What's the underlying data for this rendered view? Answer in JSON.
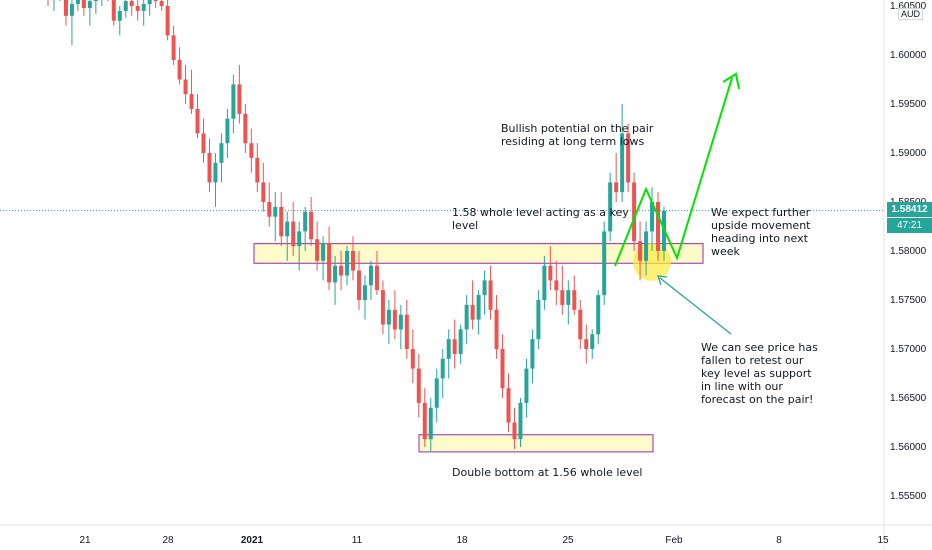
{
  "chart_data": {
    "type": "candlestick",
    "instrument_currency": "AUD",
    "y_ticks": [
      "1.60500",
      "1.60000",
      "1.59500",
      "1.59000",
      "1.58500",
      "1.58000",
      "1.57500",
      "1.57000",
      "1.56500",
      "1.56000",
      "1.55500"
    ],
    "x_ticks": [
      {
        "label": "21",
        "bold": false
      },
      {
        "label": "28",
        "bold": false
      },
      {
        "label": "2021",
        "bold": true
      },
      {
        "label": "11",
        "bold": false
      },
      {
        "label": "18",
        "bold": false
      },
      {
        "label": "25",
        "bold": false
      },
      {
        "label": "Feb",
        "bold": false
      },
      {
        "label": "8",
        "bold": false
      },
      {
        "label": "15",
        "bold": false
      }
    ],
    "ylim": [
      1.552,
      1.6065
    ],
    "current_price": "1.58412",
    "countdown": "47:21",
    "candles": [
      [
        1.607,
        1.608,
        1.605,
        1.606
      ],
      [
        1.606,
        1.6075,
        1.6045,
        1.6062
      ],
      [
        1.6062,
        1.6078,
        1.6055,
        1.6068
      ],
      [
        1.6068,
        1.6076,
        1.603,
        1.604
      ],
      [
        1.604,
        1.6058,
        1.601,
        1.6052
      ],
      [
        1.6052,
        1.607,
        1.6045,
        1.6065
      ],
      [
        1.6065,
        1.6072,
        1.604,
        1.6048
      ],
      [
        1.6048,
        1.606,
        1.603,
        1.6055
      ],
      [
        1.6055,
        1.6068,
        1.6042,
        1.606
      ],
      [
        1.606,
        1.6075,
        1.605,
        1.607
      ],
      [
        1.607,
        1.608,
        1.6055,
        1.6058
      ],
      [
        1.6058,
        1.6062,
        1.603,
        1.6035
      ],
      [
        1.6035,
        1.605,
        1.602,
        1.6045
      ],
      [
        1.6045,
        1.606,
        1.6038,
        1.6055
      ],
      [
        1.6055,
        1.6065,
        1.604,
        1.605
      ],
      [
        1.605,
        1.6062,
        1.6035,
        1.6045
      ],
      [
        1.6045,
        1.6058,
        1.603,
        1.6052
      ],
      [
        1.6052,
        1.6066,
        1.604,
        1.606
      ],
      [
        1.606,
        1.607,
        1.6048,
        1.6055
      ],
      [
        1.6055,
        1.6068,
        1.6045,
        1.605
      ],
      [
        1.605,
        1.6058,
        1.6015,
        1.602
      ],
      [
        1.602,
        1.603,
        1.599,
        1.5995
      ],
      [
        1.5995,
        1.6008,
        1.597,
        1.5975
      ],
      [
        1.5975,
        1.599,
        1.595,
        1.596
      ],
      [
        1.596,
        1.5985,
        1.594,
        1.5945
      ],
      [
        1.5945,
        1.596,
        1.5915,
        1.592
      ],
      [
        1.592,
        1.5935,
        1.589,
        1.59
      ],
      [
        1.59,
        1.5915,
        1.586,
        1.587
      ],
      [
        1.587,
        1.59,
        1.5845,
        1.589
      ],
      [
        1.589,
        1.592,
        1.587,
        1.591
      ],
      [
        1.591,
        1.5945,
        1.5895,
        1.5935
      ],
      [
        1.5935,
        1.598,
        1.592,
        1.597
      ],
      [
        1.597,
        1.599,
        1.593,
        1.594
      ],
      [
        1.594,
        1.595,
        1.59,
        1.591
      ],
      [
        1.591,
        1.5925,
        1.588,
        1.5895
      ],
      [
        1.5895,
        1.591,
        1.586,
        1.587
      ],
      [
        1.587,
        1.589,
        1.584,
        1.585
      ],
      [
        1.585,
        1.587,
        1.5825,
        1.5835
      ],
      [
        1.5835,
        1.586,
        1.581,
        1.5845
      ],
      [
        1.5845,
        1.586,
        1.5805,
        1.5815
      ],
      [
        1.5815,
        1.584,
        1.579,
        1.583
      ],
      [
        1.583,
        1.585,
        1.5795,
        1.5805
      ],
      [
        1.5805,
        1.583,
        1.578,
        1.582
      ],
      [
        1.582,
        1.5845,
        1.58,
        1.584
      ],
      [
        1.584,
        1.5855,
        1.5805,
        1.5812
      ],
      [
        1.5812,
        1.583,
        1.578,
        1.579
      ],
      [
        1.579,
        1.5815,
        1.577,
        1.5808
      ],
      [
        1.5808,
        1.5825,
        1.576,
        1.5768
      ],
      [
        1.5768,
        1.5795,
        1.5745,
        1.5785
      ],
      [
        1.5785,
        1.58,
        1.576,
        1.5775
      ],
      [
        1.5775,
        1.5805,
        1.5765,
        1.58
      ],
      [
        1.58,
        1.5815,
        1.577,
        1.578
      ],
      [
        1.578,
        1.58,
        1.574,
        1.575
      ],
      [
        1.575,
        1.5775,
        1.573,
        1.5765
      ],
      [
        1.5765,
        1.579,
        1.575,
        1.5785
      ],
      [
        1.5785,
        1.58,
        1.5755,
        1.576
      ],
      [
        1.576,
        1.577,
        1.5715,
        1.5725
      ],
      [
        1.5725,
        1.575,
        1.5705,
        1.574
      ],
      [
        1.574,
        1.576,
        1.571,
        1.572
      ],
      [
        1.572,
        1.5745,
        1.57,
        1.5735
      ],
      [
        1.5735,
        1.575,
        1.569,
        1.57
      ],
      [
        1.57,
        1.572,
        1.5665,
        1.568
      ],
      [
        1.568,
        1.5695,
        1.563,
        1.5645
      ],
      [
        1.5645,
        1.566,
        1.56,
        1.5608
      ],
      [
        1.5608,
        1.565,
        1.5595,
        1.564
      ],
      [
        1.564,
        1.568,
        1.5625,
        1.567
      ],
      [
        1.567,
        1.57,
        1.565,
        1.569
      ],
      [
        1.569,
        1.572,
        1.567,
        1.571
      ],
      [
        1.571,
        1.573,
        1.568,
        1.5695
      ],
      [
        1.5695,
        1.5725,
        1.5685,
        1.572
      ],
      [
        1.572,
        1.5755,
        1.5705,
        1.5745
      ],
      [
        1.5745,
        1.577,
        1.572,
        1.573
      ],
      [
        1.573,
        1.576,
        1.5715,
        1.5755
      ],
      [
        1.5755,
        1.578,
        1.5735,
        1.577
      ],
      [
        1.577,
        1.5785,
        1.573,
        1.574
      ],
      [
        1.574,
        1.5755,
        1.569,
        1.57
      ],
      [
        1.57,
        1.5715,
        1.565,
        1.566
      ],
      [
        1.566,
        1.5675,
        1.5615,
        1.5625
      ],
      [
        1.5625,
        1.564,
        1.5598,
        1.5608
      ],
      [
        1.5608,
        1.565,
        1.56,
        1.5645
      ],
      [
        1.5645,
        1.569,
        1.563,
        1.568
      ],
      [
        1.568,
        1.572,
        1.5665,
        1.571
      ],
      [
        1.571,
        1.576,
        1.57,
        1.575
      ],
      [
        1.575,
        1.5795,
        1.574,
        1.5785
      ],
      [
        1.5785,
        1.5805,
        1.576,
        1.577
      ],
      [
        1.577,
        1.579,
        1.5745,
        1.576
      ],
      [
        1.576,
        1.5785,
        1.5735,
        1.5745
      ],
      [
        1.5745,
        1.577,
        1.5725,
        1.576
      ],
      [
        1.576,
        1.5775,
        1.5735,
        1.574
      ],
      [
        1.574,
        1.575,
        1.57,
        1.571
      ],
      [
        1.571,
        1.5725,
        1.5685,
        1.57
      ],
      [
        1.57,
        1.572,
        1.569,
        1.5715
      ],
      [
        1.5715,
        1.576,
        1.5705,
        1.5755
      ],
      [
        1.5755,
        1.583,
        1.5745,
        1.582
      ],
      [
        1.582,
        1.588,
        1.581,
        1.587
      ],
      [
        1.587,
        1.59,
        1.585,
        1.586
      ],
      [
        1.586,
        1.595,
        1.585,
        1.592
      ],
      [
        1.592,
        1.593,
        1.586,
        1.587
      ],
      [
        1.587,
        1.588,
        1.58,
        1.581
      ],
      [
        1.581,
        1.583,
        1.577,
        1.579
      ],
      [
        1.579,
        1.583,
        1.5775,
        1.582
      ],
      [
        1.582,
        1.5865,
        1.58,
        1.585
      ],
      [
        1.585,
        1.586,
        1.579,
        1.58
      ],
      [
        1.58,
        1.5845,
        1.579,
        1.5841
      ]
    ],
    "zones": [
      {
        "name": "1.58 whole level",
        "y_top": 1.58075,
        "y_bottom": 1.57875
      },
      {
        "name": "1.56 whole level",
        "y_top": 1.56125,
        "y_bottom": 1.5595
      }
    ],
    "annotations": [
      "Bullish potential on the pair\nresiding at long term lows",
      "1.58 whole level acting as a key\nlevel",
      "We expect further\nupside movement\nheading into next\nweek",
      "We can see price has\nfallen to retest our\nkey level as support\nin line with our\nforecast on the pair!",
      "Double bottom at 1.56 whole level"
    ],
    "colors": {
      "up": "#26a69a",
      "down": "#ef5350",
      "zone_fill": "#fff9c4",
      "zone_border": "#9c27b0",
      "forecast_line": "#00e600",
      "arrow": "#26a69a",
      "price_line": "#26a69a",
      "highlight": "#ffeb3b"
    }
  }
}
